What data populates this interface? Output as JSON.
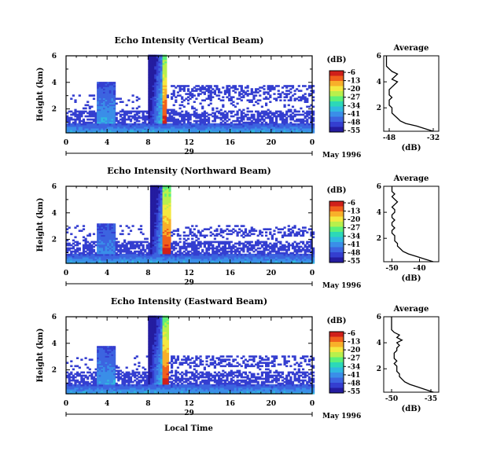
{
  "figure": {
    "x_axis_label": "Local Time",
    "date_label": "May 1996",
    "day_label": "29"
  },
  "colorscale": {
    "unit": "(dB)",
    "tick_labels": [
      "-6",
      "-13",
      "-20",
      "-27",
      "-34",
      "-41",
      "-48",
      "-55"
    ],
    "colors": [
      "#d0201a",
      "#f0601c",
      "#f8b02a",
      "#f4e840",
      "#b8f04c",
      "#5cf07a",
      "#2cd8b8",
      "#30b8e0",
      "#3a8ee8",
      "#3c64e0",
      "#343ed0",
      "#241ca0"
    ]
  },
  "chart_data": [
    {
      "type": "heatmap",
      "title": "Echo Intensity (Vertical Beam)",
      "ylabel": "Height (km)",
      "xlabel": "",
      "x_ticks": [
        "0",
        "4",
        "8",
        "12",
        "16",
        "20",
        "0"
      ],
      "y_ticks": [
        "2",
        "4",
        "6"
      ],
      "xlim": [
        0,
        24
      ],
      "ylim": [
        0.2,
        6
      ],
      "unit": "dB",
      "color_range": [
        -55,
        -6
      ],
      "features": {
        "surface_layer_top_km": 0.9,
        "early_cloud": {
          "hour_start": 2.9,
          "hour_end": 4.8,
          "top_km": 4.0
        },
        "storm": {
          "hour_start": 8.0,
          "hour_end": 9.7,
          "top_km": 6.0,
          "core_hour": 9.7,
          "core_dB": -6
        },
        "band_layer_km": [
          2.5,
          3.8
        ]
      },
      "average": {
        "title": "Average",
        "xlabel": "(dB)",
        "x_ticks": [
          "-48",
          "-32"
        ],
        "xlim": [
          -50,
          -30
        ],
        "height_km": [
          0.2,
          0.4,
          0.6,
          0.8,
          1.0,
          1.2,
          1.4,
          1.6,
          1.8,
          2.0,
          2.2,
          2.4,
          2.6,
          2.8,
          3.0,
          3.2,
          3.4,
          3.6,
          3.8,
          4.0,
          4.2,
          4.4,
          4.6,
          4.8,
          5.0,
          5.2,
          5.4,
          5.6,
          5.8,
          6.0
        ],
        "mean_dB": [
          -32,
          -35,
          -38,
          -42,
          -44,
          -45,
          -46,
          -47,
          -47,
          -47,
          -48,
          -48,
          -48,
          -47,
          -48,
          -48,
          -48,
          -47,
          -46,
          -45,
          -47,
          -46,
          -45,
          -47,
          -48,
          -49,
          -49,
          -49,
          -49,
          -49
        ]
      }
    },
    {
      "type": "heatmap",
      "title": "Echo Intensity (Northward Beam)",
      "ylabel": "Height (km)",
      "xlabel": "",
      "x_ticks": [
        "0",
        "4",
        "8",
        "12",
        "16",
        "20",
        "0"
      ],
      "y_ticks": [
        "2",
        "4",
        "6"
      ],
      "xlim": [
        0,
        24
      ],
      "ylim": [
        0.2,
        6
      ],
      "unit": "dB",
      "color_range": [
        -55,
        -6
      ],
      "features": {
        "surface_layer_top_km": 0.9,
        "early_cloud": {
          "hour_start": 2.9,
          "hour_end": 4.8,
          "top_km": 3.2
        },
        "storm": {
          "hour_start": 8.2,
          "hour_end": 10.0,
          "top_km": 6.0,
          "core_hour": 9.7,
          "core_dB": -6
        },
        "band_layer_km": [
          2.2,
          2.8
        ]
      },
      "average": {
        "title": "Average",
        "xlabel": "(dB)",
        "x_ticks": [
          "-50",
          "-40"
        ],
        "xlim": [
          -53,
          -33
        ],
        "height_km": [
          0.2,
          0.4,
          0.6,
          0.8,
          1.0,
          1.2,
          1.4,
          1.6,
          1.8,
          2.0,
          2.2,
          2.4,
          2.6,
          2.8,
          3.0,
          3.2,
          3.4,
          3.6,
          3.8,
          4.0,
          4.2,
          4.4,
          4.6,
          4.8,
          5.0,
          5.2,
          5.4,
          5.6,
          5.8,
          6.0
        ],
        "mean_dB": [
          -35,
          -38,
          -41,
          -44,
          -46,
          -47,
          -48,
          -48,
          -49,
          -49,
          -49,
          -50,
          -50,
          -49,
          -50,
          -50,
          -49,
          -50,
          -50,
          -49,
          -49,
          -50,
          -49,
          -48,
          -49,
          -50,
          -49,
          -50,
          -50,
          -50
        ]
      }
    },
    {
      "type": "heatmap",
      "title": "Echo Intensity (Eastward Beam)",
      "ylabel": "Height (km)",
      "xlabel": "Local Time",
      "x_ticks": [
        "0",
        "4",
        "8",
        "12",
        "16",
        "20",
        "0"
      ],
      "y_ticks": [
        "2",
        "4",
        "6"
      ],
      "xlim": [
        0,
        24
      ],
      "ylim": [
        0.2,
        6
      ],
      "unit": "dB",
      "color_range": [
        -55,
        -6
      ],
      "features": {
        "surface_layer_top_km": 0.9,
        "early_cloud": {
          "hour_start": 2.9,
          "hour_end": 4.8,
          "top_km": 3.8
        },
        "storm": {
          "hour_start": 8.0,
          "hour_end": 9.8,
          "top_km": 6.0,
          "core_hour": 9.7,
          "core_dB": -6
        },
        "band_layer_km": [
          2.2,
          3.0
        ]
      },
      "average": {
        "title": "Average",
        "xlabel": "(dB)",
        "x_ticks": [
          "-50",
          "-35"
        ],
        "xlim": [
          -53,
          -32
        ],
        "height_km": [
          0.2,
          0.4,
          0.6,
          0.8,
          1.0,
          1.2,
          1.4,
          1.6,
          1.8,
          2.0,
          2.2,
          2.4,
          2.6,
          2.8,
          3.0,
          3.2,
          3.4,
          3.6,
          3.8,
          4.0,
          4.2,
          4.4,
          4.6,
          4.8,
          5.0,
          5.2,
          5.4,
          5.6,
          5.8,
          6.0
        ],
        "mean_dB": [
          -34,
          -37,
          -40,
          -43,
          -45,
          -46,
          -47,
          -47,
          -48,
          -48,
          -48,
          -49,
          -48,
          -49,
          -49,
          -49,
          -48,
          -48,
          -47,
          -48,
          -46,
          -48,
          -47,
          -49,
          -50,
          -50,
          -50,
          -50,
          -50,
          -50
        ]
      }
    }
  ]
}
